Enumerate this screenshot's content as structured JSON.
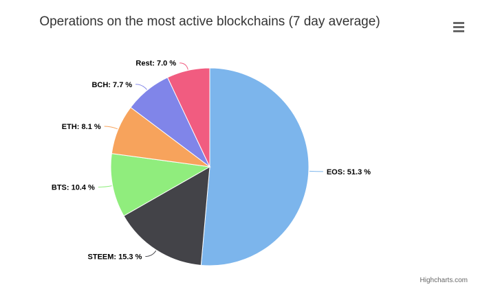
{
  "title": "Operations on the most active blockchains (7 day average)",
  "menu_icon": "hamburger-menu-icon",
  "credits": "Highcharts.com",
  "chart_data": {
    "type": "pie",
    "title": "Operations on the most active blockchains (7 day average)",
    "label_format": "{name}: {value} %",
    "slices": [
      {
        "name": "EOS",
        "value": 51.3,
        "label": "EOS: 51.3 %",
        "color": "#7cb5ec"
      },
      {
        "name": "STEEM",
        "value": 15.3,
        "label": "STEEM: 15.3 %",
        "color": "#434348"
      },
      {
        "name": "BTS",
        "value": 10.4,
        "label": "BTS: 10.4 %",
        "color": "#90ed7d"
      },
      {
        "name": "ETH",
        "value": 8.1,
        "label": "ETH: 8.1 %",
        "color": "#f7a35c"
      },
      {
        "name": "BCH",
        "value": 7.7,
        "label": "BCH: 7.7 %",
        "color": "#8085e9"
      },
      {
        "name": "Rest",
        "value": 7.0,
        "label": "Rest: 7.0 %",
        "color": "#f15c80"
      }
    ]
  }
}
